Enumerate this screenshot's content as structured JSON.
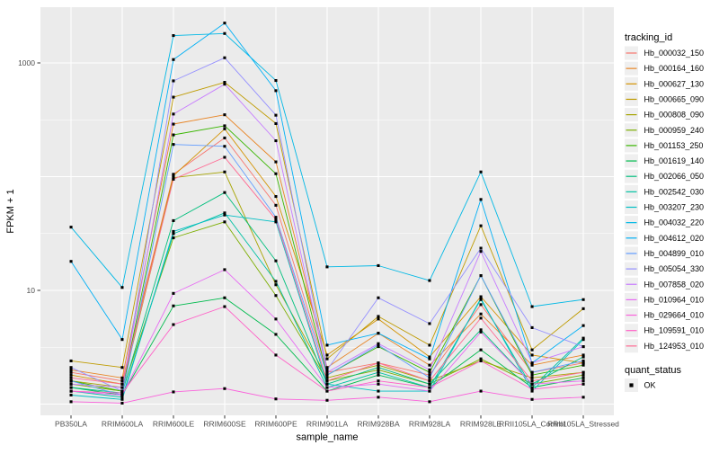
{
  "figure": {
    "background": "#FFFFFF",
    "panel_background": "#EBEBEB",
    "gridline_color": "#FFFFFF",
    "tick_color": "#333333",
    "tick_label_color": "#4D4D4D",
    "point_color": "#000000",
    "legend_key_fill": "#EFEFEF"
  },
  "chart_data": {
    "type": "line",
    "title": "",
    "x_axis_label": "sample_name",
    "y_axis_label": "FPKM + 1",
    "y_scale": "log10",
    "ylim": [
      0.8,
      3100
    ],
    "y_ticks_labeled": [
      1000,
      10
    ],
    "y_gridlines_major": [
      1,
      10,
      100,
      1000
    ],
    "y_gridlines_minor": [
      3.162,
      31.62,
      316.2
    ],
    "grid": "on",
    "legend_position": "right",
    "legend_title": "tracking_id",
    "point_marker": "black-square",
    "categories": [
      "PB350LA",
      "RRIM600LA",
      "RRIM600LE",
      "RRIM600SE",
      "RRIM600PE",
      "RRIM901LA",
      "RRIM928BA",
      "RRIM928LA",
      "RRIM928LE",
      "RRII105LA_Control",
      "RRII105LA_Stressed"
    ],
    "series": [
      {
        "name": "Hb_000032_150",
        "color": "#F8766D",
        "values": [
          1.9,
          1.6,
          105,
          219,
          56,
          1.9,
          2.3,
          1.8,
          7.5,
          1.9,
          2.3
        ]
      },
      {
        "name": "Hb_000164_160",
        "color": "#E88526",
        "values": [
          2.0,
          1.7,
          290,
          350,
          135,
          2.1,
          4.2,
          2.2,
          6.2,
          2.2,
          2.7
        ]
      },
      {
        "name": "Hb_000627_130",
        "color": "#D39200",
        "values": [
          1.8,
          1.5,
          102,
          263,
          67,
          2.7,
          5.6,
          2.6,
          8.8,
          2.7,
          2.3
        ]
      },
      {
        "name": "Hb_000665_090",
        "color": "#BF9B00",
        "values": [
          2.4,
          2.1,
          500,
          675,
          293,
          2.5,
          5.9,
          3.3,
          37,
          3.0,
          6.9
        ]
      },
      {
        "name": "Hb_000808_090",
        "color": "#A6A400",
        "values": [
          1.6,
          1.4,
          98,
          110,
          11.2,
          1.7,
          2.2,
          1.6,
          2.4,
          1.7,
          1.9
        ]
      },
      {
        "name": "Hb_000959_240",
        "color": "#7CAE00",
        "values": [
          1.5,
          1.3,
          29,
          40,
          9.0,
          1.6,
          2.0,
          1.5,
          2.5,
          1.5,
          1.8
        ]
      },
      {
        "name": "Hb_001153_250",
        "color": "#39B600",
        "values": [
          1.6,
          1.3,
          233,
          280,
          106,
          1.8,
          3.2,
          1.9,
          13.5,
          1.8,
          2.2
        ]
      },
      {
        "name": "Hb_001619_140",
        "color": "#00BB4E",
        "values": [
          1.4,
          1.2,
          7.3,
          8.6,
          4.1,
          1.3,
          1.8,
          1.4,
          3.0,
          1.4,
          1.7
        ]
      },
      {
        "name": "Hb_002066_050",
        "color": "#00BF7D",
        "values": [
          1.4,
          1.25,
          41,
          72.5,
          18.2,
          1.5,
          2.1,
          1.5,
          4.5,
          1.5,
          2.6
        ]
      },
      {
        "name": "Hb_002542_030",
        "color": "#00C1A3",
        "values": [
          1.3,
          1.15,
          31.5,
          48,
          12,
          1.4,
          1.9,
          1.4,
          8.3,
          1.4,
          3.8
        ]
      },
      {
        "name": "Hb_003207_230",
        "color": "#00BFC4",
        "values": [
          1.2,
          1.1,
          33,
          46,
          40,
          1.5,
          1.3,
          1.3,
          8.5,
          1.3,
          3.7
        ]
      },
      {
        "name": "Hb_004032_220",
        "color": "#00B8E5",
        "values": [
          36,
          10.6,
          1740,
          1815,
          700,
          16.1,
          16.5,
          12.2,
          110,
          7.2,
          8.3
        ]
      },
      {
        "name": "Hb_004612_020",
        "color": "#00B0F6",
        "values": [
          18,
          3.7,
          1070,
          2240,
          570,
          3.3,
          4.2,
          2.5,
          63,
          2.3,
          4.9
        ]
      },
      {
        "name": "Hb_004899_010",
        "color": "#619CFF",
        "values": [
          1.6,
          1.2,
          192,
          185,
          44,
          1.8,
          3.3,
          1.7,
          13.5,
          1.9,
          2.4
        ]
      },
      {
        "name": "Hb_005054_330",
        "color": "#9590FF",
        "values": [
          2.1,
          1.3,
          695,
          1110,
          347,
          2.0,
          8.6,
          5.1,
          23.5,
          4.7,
          3.2
        ]
      },
      {
        "name": "Hb_007858_020",
        "color": "#C77CFF",
        "values": [
          1.5,
          1.4,
          355,
          650,
          207,
          1.9,
          3.4,
          2.0,
          22,
          2.3,
          3.2
        ]
      },
      {
        "name": "Hb_010964_010",
        "color": "#E76BF3",
        "values": [
          1.3,
          1.2,
          9.4,
          15.2,
          5.6,
          1.4,
          1.5,
          1.3,
          4.3,
          1.5,
          1.6
        ]
      },
      {
        "name": "Hb_029664_010",
        "color": "#FA62DB",
        "values": [
          1.05,
          1.02,
          1.28,
          1.37,
          1.11,
          1.08,
          1.15,
          1.05,
          1.3,
          1.1,
          1.15
        ]
      },
      {
        "name": "Hb_109591_010",
        "color": "#FF61C7",
        "values": [
          1.3,
          1.25,
          5.0,
          7.2,
          2.7,
          1.3,
          1.6,
          1.4,
          2.4,
          1.35,
          1.5
        ]
      },
      {
        "name": "Hb_124953_010",
        "color": "#FF6B94",
        "values": [
          1.7,
          1.5,
          95,
          148,
          42,
          1.6,
          2.3,
          1.6,
          5.7,
          1.6,
          1.9
        ]
      }
    ],
    "quant_legend": {
      "title": "quant_status",
      "items": [
        {
          "label": "OK",
          "marker": "black-square"
        }
      ]
    }
  }
}
